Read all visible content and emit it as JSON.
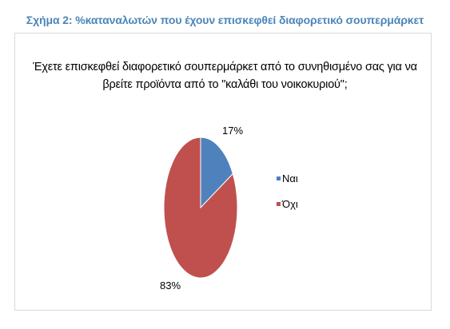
{
  "caption": "Σχήμα 2: %καταναλωτών που έχουν επισκεφθεί διαφορετικό σουπερμάρκετ",
  "chart_data": {
    "type": "pie",
    "title_lines": [
      "Έχετε επισκεφθεί διαφορετικό σουπερμάρκετ από το συνηθισμένο σας για να",
      "βρείτε προϊόντα από το \"καλάθι του νοικοκυριού\";"
    ],
    "slices": [
      {
        "label": "Ναι",
        "value": 17,
        "data_label": "17%",
        "color": "#4f81bd"
      },
      {
        "label": "Όχι",
        "value": 83,
        "data_label": "83%",
        "color": "#c0504d"
      }
    ],
    "legend_position": "right"
  }
}
